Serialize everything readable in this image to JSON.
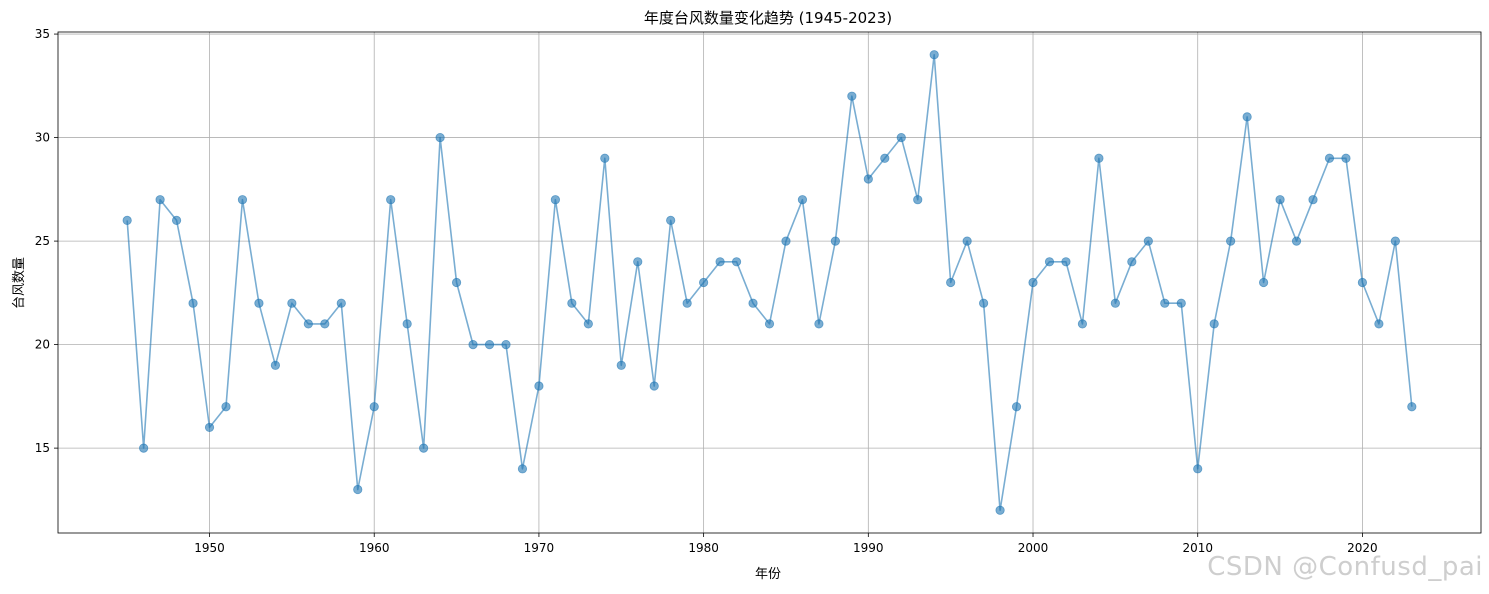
{
  "chart_data": {
    "type": "line",
    "title": "年度台风数量变化趋势 (1945-2023)",
    "xlabel": "年份",
    "ylabel": "台风数量",
    "xlim": [
      1940.8,
      2027.2
    ],
    "ylim": [
      10.9,
      35.1
    ],
    "xticks": [
      1950,
      1960,
      1970,
      1980,
      1990,
      2000,
      2010,
      2020
    ],
    "yticks": [
      15,
      20,
      25,
      30,
      35
    ],
    "grid": true,
    "marker": "circle",
    "color": "#1f77b4",
    "x": [
      1945,
      1946,
      1947,
      1948,
      1949,
      1950,
      1951,
      1952,
      1953,
      1954,
      1955,
      1956,
      1957,
      1958,
      1959,
      1960,
      1961,
      1962,
      1963,
      1964,
      1965,
      1966,
      1967,
      1968,
      1969,
      1970,
      1971,
      1972,
      1973,
      1974,
      1975,
      1976,
      1977,
      1978,
      1979,
      1980,
      1981,
      1982,
      1983,
      1984,
      1985,
      1986,
      1987,
      1988,
      1989,
      1990,
      1991,
      1992,
      1993,
      1994,
      1995,
      1996,
      1997,
      1998,
      1999,
      2000,
      2001,
      2002,
      2003,
      2004,
      2005,
      2006,
      2007,
      2008,
      2009,
      2010,
      2011,
      2012,
      2013,
      2014,
      2015,
      2016,
      2017,
      2018,
      2019,
      2020,
      2021,
      2022,
      2023
    ],
    "y": [
      26,
      15,
      27,
      26,
      22,
      16,
      17,
      27,
      22,
      19,
      22,
      21,
      21,
      22,
      13,
      17,
      27,
      21,
      15,
      30,
      23,
      20,
      20,
      20,
      14,
      18,
      27,
      22,
      21,
      29,
      19,
      24,
      18,
      26,
      22,
      23,
      24,
      24,
      22,
      21,
      25,
      27,
      21,
      25,
      32,
      28,
      29,
      30,
      27,
      34,
      23,
      25,
      22,
      12,
      17,
      23,
      24,
      24,
      21,
      29,
      22,
      24,
      25,
      22,
      22,
      14,
      21,
      25,
      31,
      23,
      27,
      25,
      27,
      29,
      29,
      23,
      21,
      25,
      17
    ]
  },
  "watermark": "CSDN @Confusd_pai"
}
